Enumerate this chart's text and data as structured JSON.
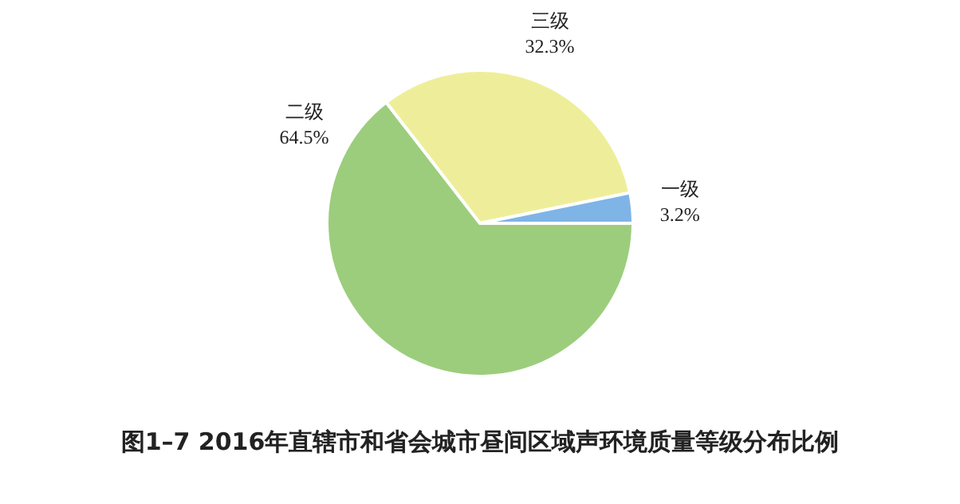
{
  "chart_data": {
    "type": "pie",
    "title": "图1–7  2016年直辖市和省会城市昼间区域声环境质量等级分布比例",
    "categories": [
      "二级",
      "三级",
      "一级"
    ],
    "values": [
      64.5,
      32.3,
      3.2
    ],
    "colors": [
      "#9ccd7c",
      "#eeee9a",
      "#7fb4e6"
    ],
    "value_labels": [
      "64.5%",
      "32.3%",
      "3.2%"
    ],
    "legend": false
  }
}
